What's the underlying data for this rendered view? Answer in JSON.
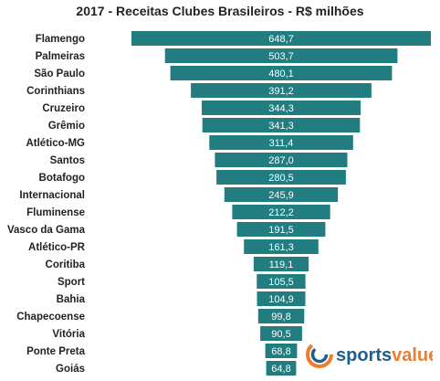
{
  "chart_data": {
    "type": "bar",
    "orientation": "horizontal",
    "layout": "centered-funnel",
    "title": "2017 - Receitas Clubes Brasileiros - R$ milhões",
    "categories": [
      "Flamengo",
      "Palmeiras",
      "São Paulo",
      "Corinthians",
      "Cruzeiro",
      "Grêmio",
      "Atlético-MG",
      "Santos",
      "Botafogo",
      "Internacional",
      "Fluminense",
      "Vasco da Gama",
      "Atlético-PR",
      "Coritiba",
      "Sport",
      "Bahia",
      "Chapecoense",
      "Vitória",
      "Ponte Preta",
      "Goiás"
    ],
    "values": [
      648.7,
      503.7,
      480.1,
      391.2,
      344.3,
      341.3,
      311.4,
      287.0,
      280.5,
      245.9,
      212.2,
      191.5,
      161.3,
      119.1,
      105.5,
      104.9,
      99.8,
      90.5,
      68.8,
      64.8
    ],
    "value_labels": [
      "648,7",
      "503,7",
      "480,1",
      "391,2",
      "344,3",
      "341,3",
      "311,4",
      "287,0",
      "280,5",
      "245,9",
      "212,2",
      "191,5",
      "161,3",
      "119,1",
      "105,5",
      "104,9",
      "99,8",
      "90,5",
      "68,8",
      "64,8"
    ],
    "bar_color": "#217d80",
    "value_label_color": "#ffffff"
  },
  "logo": {
    "text_part1": "sports",
    "text_part2": "value",
    "color_part1": "#1f5f8b",
    "color_part2": "#f07d2d"
  }
}
